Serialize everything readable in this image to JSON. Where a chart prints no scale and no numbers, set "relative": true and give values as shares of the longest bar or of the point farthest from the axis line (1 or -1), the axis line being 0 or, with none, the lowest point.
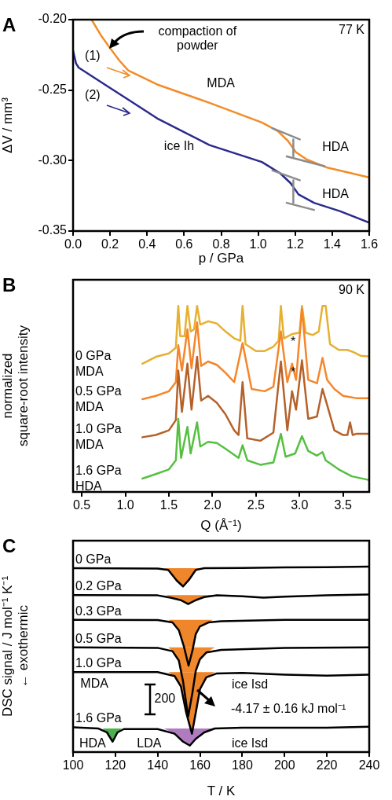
{
  "chart_data": [
    {
      "type": "line",
      "title": "A",
      "xlabel": "p / GPa",
      "ylabel": "ΔV / mm³",
      "xlim": [
        0,
        1.6
      ],
      "ylim": [
        -0.35,
        -0.2
      ],
      "xticks": [
        {
          "value": 0,
          "label": "0.0"
        },
        0.2,
        0.4,
        0.6,
        0.8,
        {
          "value": 1,
          "label": "1.0"
        },
        1.2,
        1.4,
        1.6
      ],
      "yticks": [
        -0.35,
        {
          "value": -0.3,
          "label": "-0.30"
        },
        -0.25,
        {
          "value": -0.2,
          "label": "-0.20"
        }
      ],
      "series": [
        {
          "color": "#f28c28",
          "x": [
            0.1,
            0.15,
            0.199,
            0.25,
            0.298,
            0.454,
            0.737,
            1.02,
            1.105,
            1.161,
            1.203,
            1.26,
            1.373,
            1.6
          ],
          "values": [
            -0.2,
            -0.211,
            -0.22,
            -0.229,
            -0.236,
            -0.246,
            -0.259,
            -0.273,
            -0.279,
            -0.286,
            -0.294,
            -0.299,
            -0.305,
            -0.312
          ]
        },
        {
          "color": "#2b2a8c",
          "x": [
            0,
            0.016,
            0.03,
            0.171,
            0.313,
            0.454,
            0.737,
            1.02,
            1.119,
            1.175,
            1.218,
            1.302,
            1.444,
            1.6
          ],
          "values": [
            -0.222,
            -0.231,
            -0.234,
            -0.246,
            -0.258,
            -0.27,
            -0.289,
            -0.301,
            -0.309,
            -0.316,
            -0.324,
            -0.33,
            -0.336,
            -0.344
          ]
        },
        {
          "color": "#8c8c8c",
          "x": [
            1.077,
            1.225
          ],
          "values": [
            -0.277,
            -0.285
          ]
        },
        {
          "color": "#8c8c8c",
          "x": [
            1.154,
            1.359
          ],
          "values": [
            -0.297,
            -0.304
          ]
        },
        {
          "color": "#8c8c8c",
          "x": [
            1.19,
            1.19
          ],
          "values": [
            -0.285,
            -0.297
          ]
        },
        {
          "color": "#8c8c8c",
          "x": [
            1.077,
            1.225
          ],
          "values": [
            -0.307,
            -0.314
          ]
        },
        {
          "color": "#8c8c8c",
          "x": [
            1.154,
            1.302
          ],
          "values": [
            -0.33,
            -0.335
          ]
        },
        {
          "color": "#8c8c8c",
          "x": [
            1.19,
            1.19
          ],
          "values": [
            -0.314,
            -0.33
          ]
        }
      ],
      "annotations": [
        "77 K",
        "compaction of\npowder",
        "(1)",
        "(2)",
        "MDA",
        "ice Ih",
        "HDA",
        "HDA"
      ]
    },
    {
      "type": "line",
      "title": "B",
      "relative": true,
      "xlabel": "Q (Å⁻¹)",
      "ylabel": "normalized\nsquare-root intensity",
      "xlim": [
        0.4,
        3.8
      ],
      "xticks": [
        0.5,
        {
          "value": 1,
          "label": "1.0"
        },
        1.5,
        {
          "value": 2,
          "label": "2.0"
        },
        2.5,
        {
          "value": 3,
          "label": "3.0"
        },
        3.5
      ],
      "series": [
        {
          "name": "0 GPa MDA",
          "color": "#e6b030",
          "x": [
            1.196,
            1.35,
            1.5,
            1.58,
            1.608,
            1.63,
            1.68,
            1.713,
            1.75,
            1.79,
            1.824,
            1.86,
            1.95,
            2.05,
            2.15,
            2.25,
            2.32,
            2.346,
            2.38,
            2.5,
            2.6,
            2.7,
            2.76,
            2.786,
            2.82,
            2.92,
            3.0,
            3.028,
            3.07,
            3.15,
            3.22,
            3.264,
            3.3,
            3.35,
            3.45,
            3.55,
            3.62,
            3.7,
            3.79
          ],
          "values": [
            0.689,
            0.726,
            0.744,
            0.775,
            1.0,
            0.837,
            0.837,
            1.0,
            0.862,
            0.874,
            1.0,
            0.899,
            0.917,
            0.905,
            0.862,
            0.825,
            0.812,
            1.0,
            0.794,
            0.757,
            0.757,
            0.781,
            0.812,
            1.0,
            0.825,
            0.849,
            0.856,
            1.0,
            0.856,
            0.843,
            0.862,
            1.0,
            1.0,
            0.794,
            0.763,
            0.763,
            0.751,
            0.732,
            0.728
          ]
        },
        {
          "name": "0.5 GPa MDA",
          "color": "#f5862a",
          "x": [
            1.196,
            1.35,
            1.5,
            1.58,
            1.608,
            1.65,
            1.713,
            1.76,
            1.824,
            1.87,
            1.95,
            2.05,
            2.15,
            2.25,
            2.346,
            2.45,
            2.6,
            2.7,
            2.786,
            2.86,
            2.914,
            2.96,
            3.028,
            3.1,
            3.2,
            3.264,
            3.317,
            3.4,
            3.5,
            3.65,
            3.79
          ],
          "values": [
            0.498,
            0.516,
            0.541,
            0.59,
            0.788,
            0.652,
            0.874,
            0.664,
            0.911,
            0.677,
            0.701,
            0.683,
            0.64,
            0.59,
            0.8,
            0.553,
            0.541,
            0.565,
            0.862,
            0.59,
            0.689,
            0.602,
            0.985,
            0.602,
            0.584,
            0.72,
            0.602,
            0.553,
            0.516,
            0.504,
            0.504
          ]
        },
        {
          "name": "1.0 GPa MDA",
          "color": "#b5612a",
          "x": [
            1.196,
            1.35,
            1.5,
            1.58,
            1.608,
            1.65,
            1.713,
            1.76,
            1.824,
            1.87,
            1.95,
            2.05,
            2.15,
            2.25,
            2.3,
            2.346,
            2.4,
            2.55,
            2.7,
            2.786,
            2.86,
            2.914,
            2.96,
            3.028,
            3.1,
            3.2,
            3.264,
            3.317,
            3.4,
            3.5,
            3.55,
            3.58,
            3.61,
            3.65,
            3.79
          ],
          "values": [
            0.294,
            0.306,
            0.331,
            0.386,
            0.652,
            0.43,
            0.689,
            0.442,
            0.726,
            0.491,
            0.516,
            0.479,
            0.417,
            0.331,
            0.306,
            0.59,
            0.288,
            0.275,
            0.319,
            0.701,
            0.331,
            0.541,
            0.442,
            0.707,
            0.393,
            0.405,
            0.553,
            0.467,
            0.331,
            0.306,
            0.306,
            0.374,
            0.306,
            0.312,
            0.312
          ]
        },
        {
          "name": "1.6 GPa HDA",
          "color": "#55c040",
          "x": [
            1.196,
            1.35,
            1.5,
            1.58,
            1.608,
            1.64,
            1.713,
            1.75,
            1.824,
            1.86,
            1.95,
            2.05,
            2.15,
            2.3,
            2.346,
            2.4,
            2.55,
            2.7,
            2.786,
            2.84,
            2.95,
            3.028,
            3.1,
            3.2,
            3.264,
            3.3,
            3.45,
            3.6,
            3.79
          ],
          "values": [
            0.072,
            0.096,
            0.121,
            0.17,
            0.393,
            0.183,
            0.349,
            0.207,
            0.374,
            0.244,
            0.269,
            0.263,
            0.232,
            0.183,
            0.251,
            0.17,
            0.146,
            0.158,
            0.312,
            0.189,
            0.207,
            0.3,
            0.22,
            0.195,
            0.214,
            0.17,
            0.121,
            0.084,
            0.065
          ]
        }
      ],
      "annotations": [
        "90 K",
        "*",
        "*"
      ]
    },
    {
      "type": "line",
      "title": "C",
      "relative": true,
      "xlabel": "T / K",
      "ylabel": "DSC signal / J mol⁻¹ K⁻¹\n← exothermic",
      "xlim": [
        100,
        240
      ],
      "xticks": [
        100,
        120,
        140,
        160,
        180,
        200,
        220,
        240
      ],
      "series": [
        {
          "color": "#f0862a",
          "x": [
            143,
            145,
            149,
            152,
            155,
            158,
            160
          ],
          "values": [
            null,
            null,
            null,
            null,
            null,
            null,
            null
          ],
          "lower": [
            0.992,
            0.982,
            0.925,
            0.893,
            0.932,
            0.982,
            0.992
          ],
          "upper": [
            0.992,
            0.992,
            0.992,
            0.992,
            0.992,
            0.992,
            0.992
          ]
        },
        {
          "color": "#f0862a",
          "x": [
            144,
            146,
            151,
            154.4,
            158,
            162,
            166
          ],
          "values": [
            null,
            null,
            null,
            null,
            null,
            null,
            null
          ],
          "lower": [
            0.847,
            0.833,
            0.819,
            0.798,
            0.819,
            0.836,
            0.847
          ],
          "upper": [
            0.847,
            0.847,
            0.847,
            0.847,
            0.847,
            0.847,
            0.847
          ]
        },
        {
          "color": "#f0862a",
          "x": [
            145,
            147,
            150,
            152.5,
            156.75,
            158,
            160,
            164,
            166
          ],
          "values": [
            null,
            null,
            null,
            null,
            null,
            null,
            null,
            null,
            null
          ],
          "lower": [
            0.713,
            0.699,
            0.657,
            0.565,
            0.565,
            0.636,
            0.678,
            0.699,
            0.713
          ],
          "upper": [
            0.713,
            0.713,
            0.713,
            0.713,
            0.713,
            0.713,
            0.713,
            0.713,
            0.713
          ]
        },
        {
          "color": "#f2882c",
          "x": [
            145,
            147,
            150,
            151.1,
            157.9,
            160,
            163,
            167
          ],
          "values": [
            null,
            null,
            null,
            null,
            null,
            null,
            null,
            null
          ],
          "lower": [
            0.565,
            0.544,
            0.494,
            0.431,
            0.431,
            0.501,
            0.537,
            0.565
          ],
          "upper": [
            0.565,
            0.565,
            0.565,
            0.565,
            0.565,
            0.565,
            0.565,
            0.565
          ]
        },
        {
          "color": "#ee8428",
          "x": [
            145,
            148,
            151,
            153.5,
            155.5,
            156.65,
            158,
            160,
            163,
            167
          ],
          "values": [
            null,
            null,
            null,
            null,
            null,
            null,
            null,
            null,
            null,
            null
          ],
          "lower": [
            0.431,
            0.41,
            0.353,
            0.212,
            0.127,
            0.127,
            0.212,
            0.339,
            0.403,
            0.431
          ],
          "upper": [
            0.431,
            0.431,
            0.431,
            0.431,
            0.431,
            0.431,
            0.431,
            0.431,
            0.431,
            0.431
          ]
        },
        {
          "color": "#4cb04c",
          "x": [
            114,
            116,
            118.7,
            121,
            123
          ],
          "values": [
            null,
            null,
            null,
            null,
            null
          ],
          "lower": [
            0.127,
            0.106,
            0.056,
            0.106,
            0.127
          ],
          "upper": [
            0.127,
            0.127,
            0.127,
            0.127,
            0.127
          ]
        },
        {
          "color": "#b07cc0",
          "x": [
            143,
            148,
            152,
            155.2,
            158,
            162,
            167
          ],
          "values": [
            null,
            null,
            null,
            null,
            null,
            null,
            null
          ],
          "lower": [
            0.127,
            0.099,
            0.056,
            0.035,
            0.071,
            0.106,
            0.127
          ],
          "upper": [
            0.127,
            0.127,
            0.127,
            0.127,
            0.127,
            0.127,
            0.127
          ]
        },
        {
          "name": "0 GPa",
          "color": "#000000",
          "x": [
            100,
            140,
            145,
            149,
            152,
            155,
            158,
            162,
            180,
            200,
            220,
            240
          ],
          "values": [
            0.992,
            0.99,
            0.982,
            0.925,
            0.893,
            0.932,
            0.982,
            0.992,
            0.993,
            0.996,
            0.997,
            1.0
          ]
        },
        {
          "name": "0.2 GPa",
          "color": "#000000",
          "x": [
            100,
            140,
            146,
            151,
            154.4,
            158,
            162,
            168,
            180,
            190,
            200,
            220,
            240
          ],
          "values": [
            0.847,
            0.845,
            0.833,
            0.819,
            0.798,
            0.819,
            0.836,
            0.845,
            0.84,
            0.833,
            0.838,
            0.845,
            0.85
          ]
        },
        {
          "name": "0.3 GPa",
          "color": "#000000",
          "x": [
            100,
            140,
            147,
            150,
            152.5,
            154.6,
            156.5,
            158,
            160,
            164,
            170,
            200,
            240
          ],
          "values": [
            0.713,
            0.712,
            0.699,
            0.657,
            0.565,
            0.466,
            0.551,
            0.636,
            0.678,
            0.699,
            0.706,
            0.713,
            0.713
          ]
        },
        {
          "name": "0.5 GPa",
          "color": "#000000",
          "x": [
            100,
            140,
            147,
            150,
            152,
            154.4,
            156.5,
            158,
            160,
            163,
            170,
            200,
            240
          ],
          "values": [
            0.565,
            0.562,
            0.544,
            0.494,
            0.381,
            0.191,
            0.325,
            0.438,
            0.501,
            0.537,
            0.551,
            0.561,
            0.565
          ]
        },
        {
          "name": "1.0 GPa",
          "color": "#000000",
          "x": [
            100,
            140,
            148,
            151,
            153.5,
            156.2,
            158,
            160,
            163,
            168,
            180,
            200,
            220,
            240
          ],
          "values": [
            0.431,
            0.431,
            0.41,
            0.353,
            0.212,
            0.099,
            0.212,
            0.339,
            0.403,
            0.424,
            0.427,
            0.417,
            0.412,
            0.417
          ]
        },
        {
          "name": "1.6 GPa",
          "color": "#000000",
          "x": [
            100,
            112,
            116,
            118.7,
            121,
            124,
            140,
            148,
            152,
            155.2,
            158,
            162,
            167,
            180,
            200,
            220,
            240
          ],
          "values": [
            0.134,
            0.127,
            0.106,
            0.056,
            0.106,
            0.124,
            0.124,
            0.099,
            0.056,
            0.035,
            0.071,
            0.106,
            0.127,
            0.131,
            0.131,
            0.131,
            0.137
          ]
        }
      ],
      "annotations": [
        "MDA",
        "ice Isd",
        "200",
        "-4.17 ± 0.16 kJ mol⁻¹",
        "HDA",
        "LDA",
        "ice Isd"
      ]
    }
  ]
}
